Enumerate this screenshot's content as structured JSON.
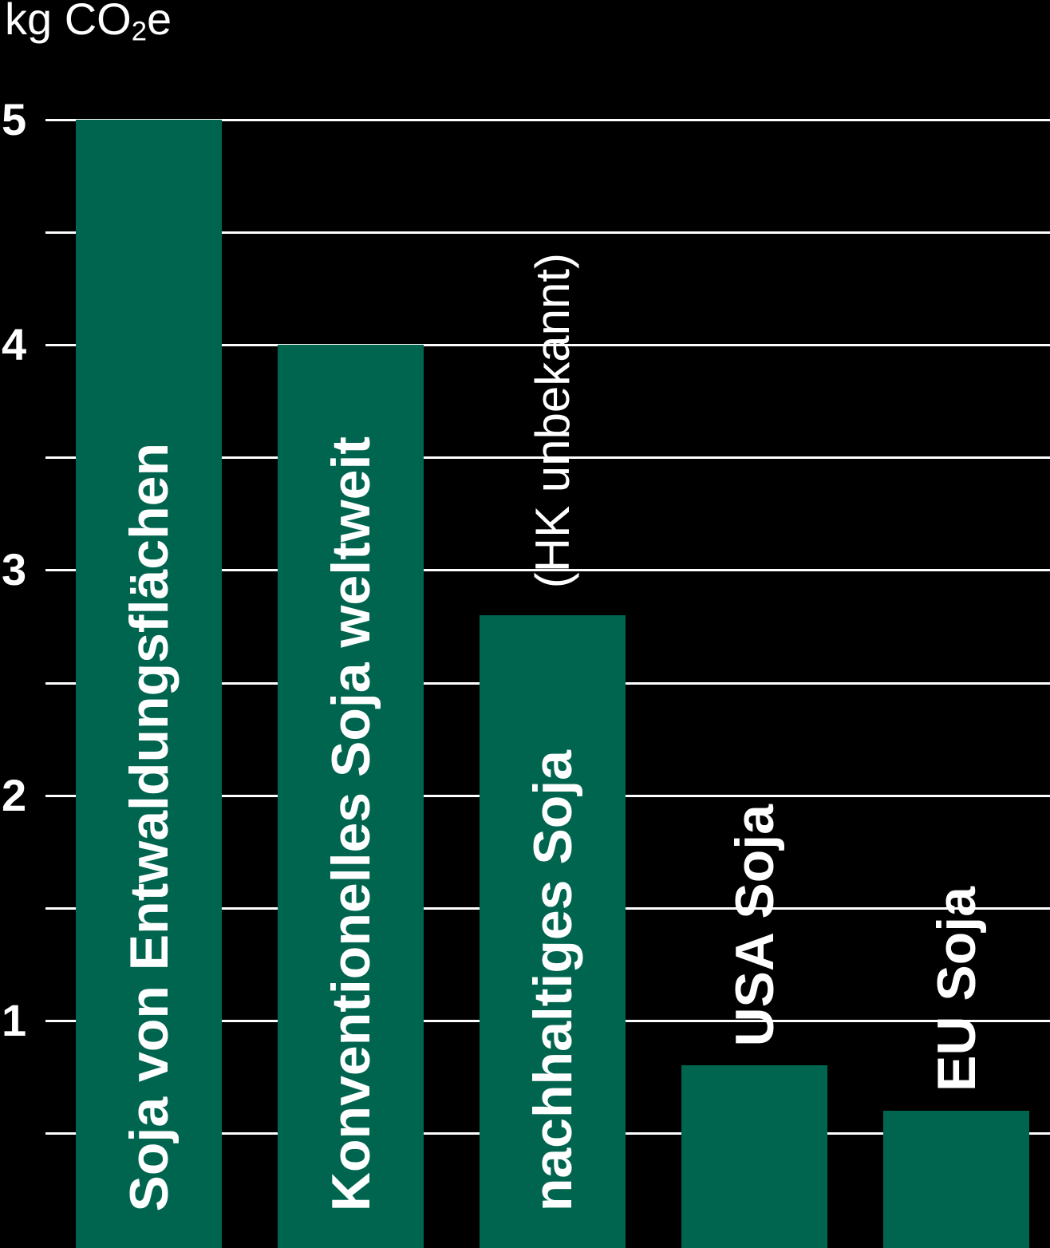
{
  "unit": {
    "prefix": "kg CO",
    "sub": "2",
    "suffix": "e"
  },
  "chart_data": {
    "type": "bar",
    "title": "kg CO2e",
    "ylabel": "kg CO2e",
    "categories": [
      "Soja von Entwaldungsflächen",
      "Konventionelles Soja weltweit",
      "nachhaltiges Soja",
      "USA Soja",
      "EU Soja"
    ],
    "values": [
      5.0,
      4.0,
      2.8,
      0.8,
      0.6
    ],
    "label_positions": [
      "inside",
      "inside",
      "inside",
      "above",
      "above"
    ],
    "annotations": [
      {
        "category_index": 2,
        "text": "(HK unbekannt)"
      }
    ],
    "ylim": [
      0,
      5
    ],
    "yticks": [
      5,
      4,
      3,
      2,
      1
    ],
    "gridline_step": 0.5,
    "grid": true,
    "legend": false,
    "xlabel": "",
    "colors": {
      "bar": "#00654F",
      "background": "#000000",
      "text": "#FFFFFF",
      "gridline": "#FFFFFF"
    }
  }
}
